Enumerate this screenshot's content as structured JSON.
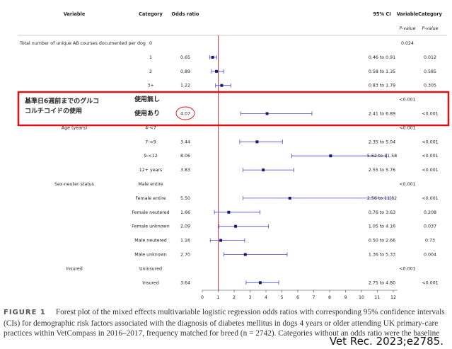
{
  "chart_data": {
    "type": "forest",
    "headers": {
      "variable": "Variable",
      "category": "Category",
      "odds_ratio": "Odds ratio",
      "ci": "95% CI",
      "p_variable": "Variable",
      "p_category": "Category",
      "p_sub": "P-value"
    },
    "highlight_label": [
      "基準日6週前までのグルコ",
      "コルチコイドの使用"
    ],
    "rows": [
      {
        "variable": "Total number of unique AB courses documented per dog",
        "category": "0",
        "p_variable": "0.024"
      },
      {
        "category": "1",
        "or": 0.65,
        "ci_low": 0.46,
        "ci_high": 0.91,
        "ci_label": "0.46 to 0.91",
        "p_category": "0.012"
      },
      {
        "category": "2",
        "or": 0.89,
        "ci_low": 0.58,
        "ci_high": 1.35,
        "ci_label": "0.58 to 1.35",
        "p_category": "0.585"
      },
      {
        "category": "3+",
        "or": 1.22,
        "ci_low": 0.83,
        "ci_high": 1.79,
        "ci_label": "0.83 to 1.79",
        "p_category": "0.305"
      },
      {
        "category": "使用無し",
        "p_variable": "<0.001"
      },
      {
        "category": "使用あり",
        "or": 4.07,
        "ci_low": 2.41,
        "ci_high": 6.89,
        "ci_label": "2.41 to 6.89",
        "p_category": "<0.001"
      },
      {
        "variable": "Age (years)",
        "category": "4-<7",
        "p_variable": "<0.001"
      },
      {
        "category": "7-<9",
        "or": 3.44,
        "ci_low": 2.35,
        "ci_high": 5.04,
        "ci_label": "2.35 to 5.04",
        "p_category": "<0.001"
      },
      {
        "category": "9-<12",
        "or": 8.06,
        "ci_low": 5.62,
        "ci_high": 11.58,
        "ci_label": "5.62 to 11.58",
        "p_category": "<0.001"
      },
      {
        "category": "12+ years",
        "or": 3.83,
        "ci_low": 2.55,
        "ci_high": 5.76,
        "ci_label": "2.55 to 5.76",
        "p_category": "<0.001"
      },
      {
        "variable": "Sex-neuter status",
        "category": "Male entire",
        "p_variable": "<0.001"
      },
      {
        "category": "Female entire",
        "or": 5.5,
        "or_label": "5.50",
        "ci_low": 2.56,
        "ci_high": 11.82,
        "ci_label": "2.56 to 11.82",
        "p_category": "<0.001"
      },
      {
        "category": "Female neutered",
        "or": 1.66,
        "ci_low": 0.76,
        "ci_high": 3.63,
        "ci_label": "0.76 to 3.63",
        "p_category": "0.208"
      },
      {
        "category": "Female unknown",
        "or": 2.09,
        "ci_low": 1.05,
        "ci_high": 4.16,
        "ci_label": "1.05 to 4.16",
        "p_category": "0.037"
      },
      {
        "category": "Male neutered",
        "or": 1.16,
        "ci_low": 0.5,
        "ci_high": 2.66,
        "ci_label": "0.50 to 2.66",
        "p_category": "0.73"
      },
      {
        "category": "Male unknown",
        "or": 2.7,
        "or_label": "2.70",
        "ci_low": 1.36,
        "ci_high": 5.33,
        "ci_label": "1.36 to 5.33",
        "p_category": "0.004"
      },
      {
        "variable": "Insured",
        "category": "Uninsured",
        "p_variable": "<0.001"
      },
      {
        "category": "Insured",
        "or": 3.64,
        "ci_low": 2.75,
        "ci_high": 4.8,
        "ci_label": "2.75 to 4.80",
        "p_category": "<0.001"
      }
    ],
    "xlim": [
      0,
      12
    ],
    "xticks": [
      0,
      1,
      2,
      3,
      4,
      5,
      6,
      7,
      8,
      9,
      10,
      11,
      12
    ],
    "reference_line": 1,
    "ci_color": "#4a4ae0",
    "point_color": "#1a1a6e",
    "reference_color": "#d42020",
    "caption_label": "FIGURE 1",
    "caption": "Forest plot of the mixed effects multivariable logistic regression odds ratios with corresponding 95% confidence intervals (CIs) for demographic risk factors associated with the diagnosis of diabetes mellitus in dogs 4 years or older attending UK primary-care practices within VetCompass in 2016–2017, frequency matched for breed (n = 2742). Categories without an odds ratio were the baseline",
    "citation": "Vet Rec. 2023;e2785."
  }
}
